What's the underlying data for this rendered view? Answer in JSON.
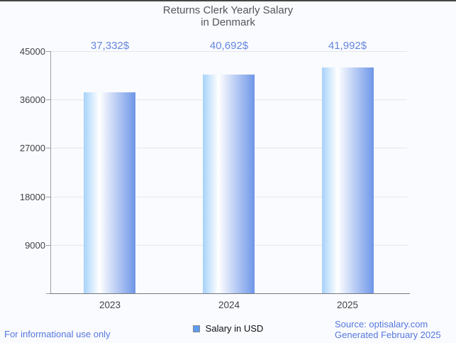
{
  "title": {
    "line1": "Returns Clerk Yearly Salary",
    "line2": "in Denmark"
  },
  "chart_data": {
    "type": "bar",
    "title": "Returns Clerk Yearly Salary in Denmark",
    "categories": [
      "2023",
      "2024",
      "2025"
    ],
    "values": [
      37332,
      40692,
      41992
    ],
    "value_labels": [
      "37,332$",
      "40,692$",
      "41,992$"
    ],
    "series_name": "Salary in USD",
    "xlabel": "",
    "ylabel": "",
    "ylim": [
      0,
      45000
    ],
    "yticks": [
      9000,
      18000,
      27000,
      36000,
      45000
    ],
    "grid": true,
    "legend_position": "bottom"
  },
  "legend": {
    "label": "Salary in USD"
  },
  "footer": {
    "left": "For informational use only",
    "source": "Source: optisalary.com",
    "generated": "Generated February 2025"
  },
  "colors": {
    "background": "#fafbfe",
    "value_label": "#6486dd",
    "footer_text": "#5577dd",
    "bar_gradient_left": "#a7d2f9",
    "bar_gradient_mid": "#ffffff",
    "bar_gradient_right": "#6e96e8",
    "legend_swatch": "#5b9bf0",
    "grid_line": "#e4e6ea",
    "axis_line": "#9a9da1",
    "baseline": "#77797c",
    "axis_text": "#3f4245",
    "title_text": "#54565a"
  }
}
